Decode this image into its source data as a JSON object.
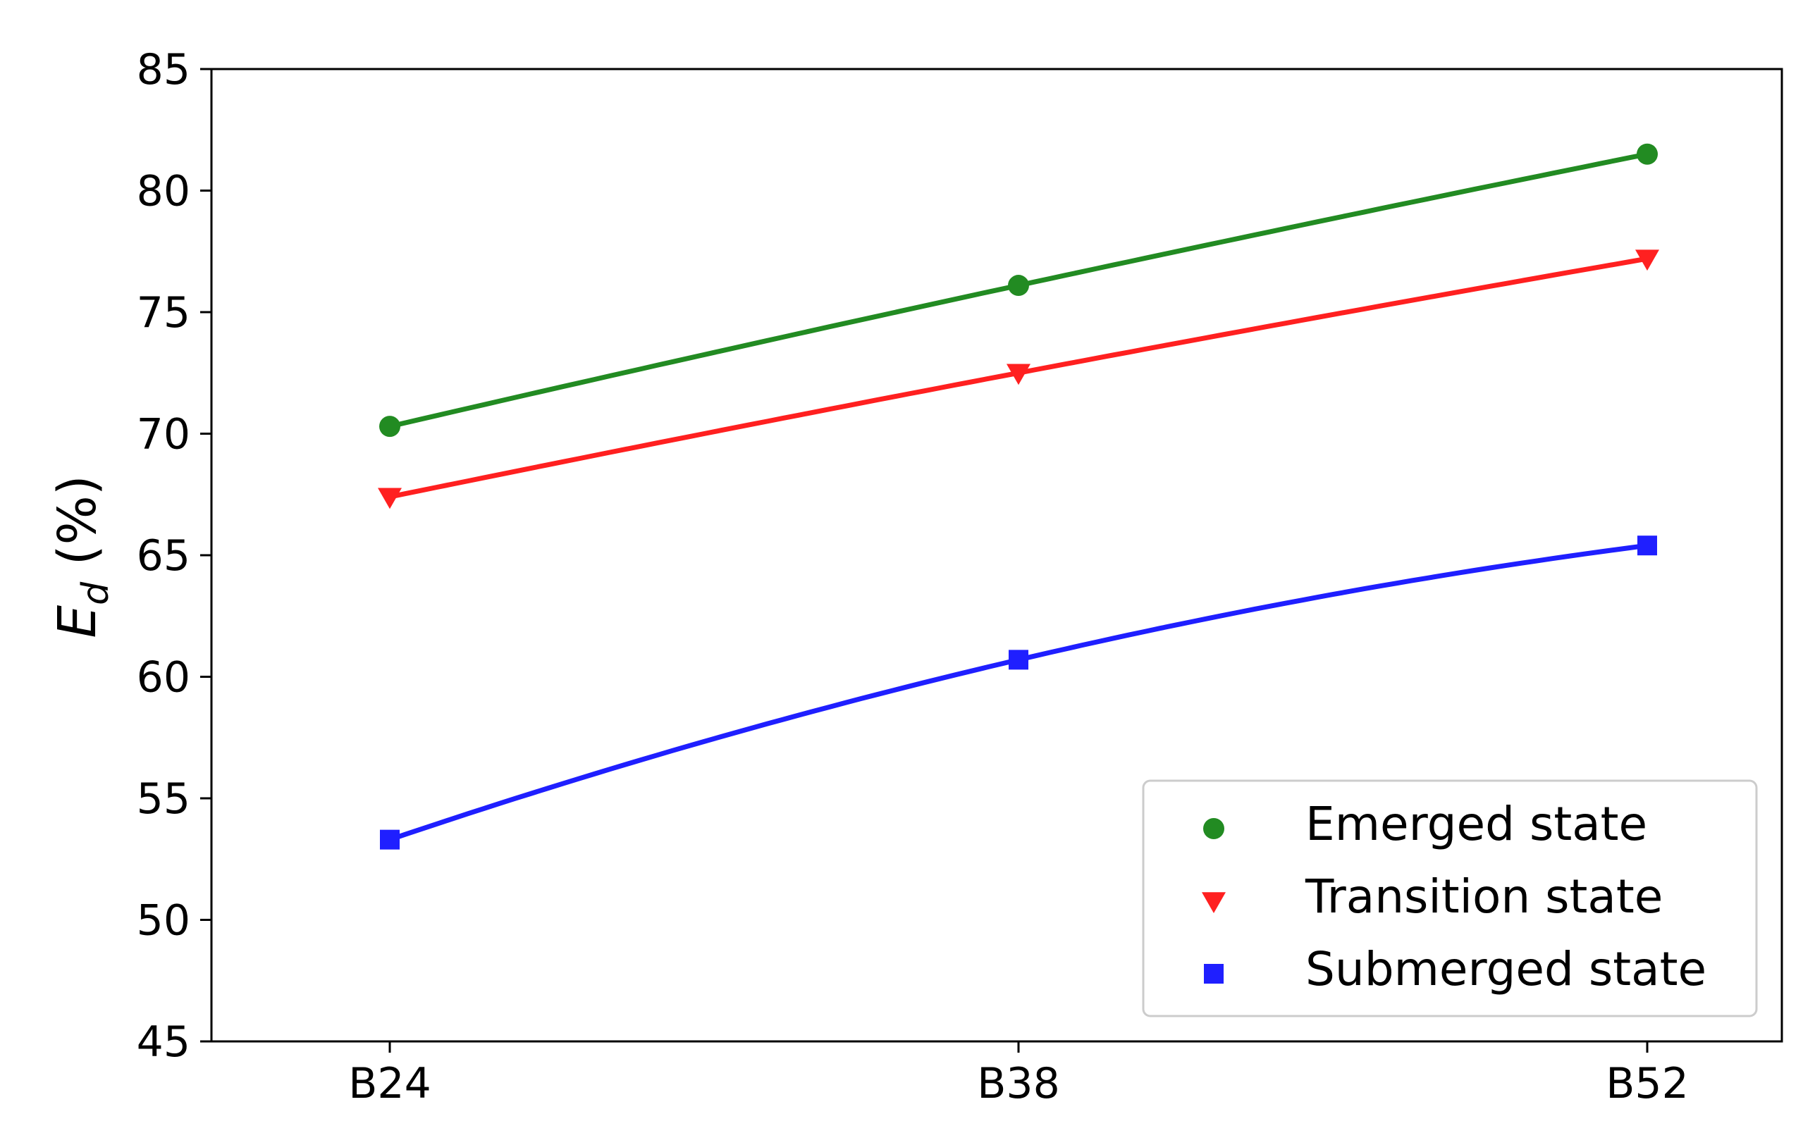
{
  "chart_data": {
    "type": "line",
    "title": "",
    "xlabel": "",
    "ylabel": {
      "main": "E",
      "subscript": "d",
      "suffix": " (%)"
    },
    "categories": [
      "B24",
      "B38",
      "B52"
    ],
    "ylim": [
      45,
      85
    ],
    "yticks": [
      45,
      50,
      55,
      60,
      65,
      70,
      75,
      80,
      85
    ],
    "grid": false,
    "legend_position": "lower-right",
    "series": [
      {
        "name": "Emerged state",
        "marker": "circle",
        "color": "#228b22",
        "values": [
          70.3,
          76.1,
          81.5
        ]
      },
      {
        "name": "Transition state",
        "marker": "triangle-down",
        "color": "#ff2020",
        "values": [
          67.4,
          72.5,
          77.2
        ]
      },
      {
        "name": "Submerged state",
        "marker": "square",
        "color": "#1f1fff",
        "values": [
          53.3,
          60.7,
          65.4
        ]
      }
    ]
  }
}
